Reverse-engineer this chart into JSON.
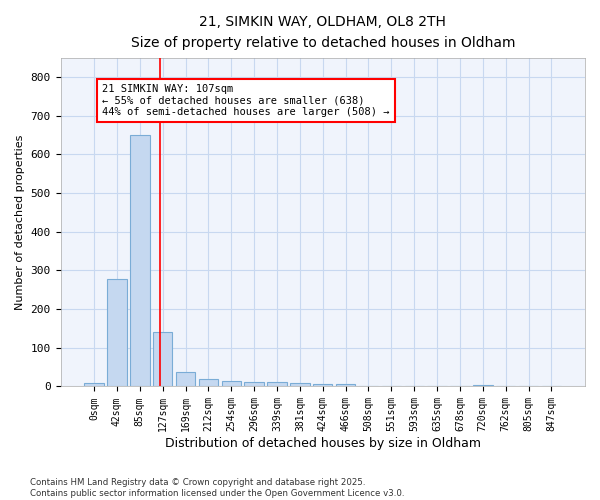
{
  "title1": "21, SIMKIN WAY, OLDHAM, OL8 2TH",
  "title2": "Size of property relative to detached houses in Oldham",
  "xlabel": "Distribution of detached houses by size in Oldham",
  "ylabel": "Number of detached properties",
  "footnote1": "Contains HM Land Registry data © Crown copyright and database right 2025.",
  "footnote2": "Contains public sector information licensed under the Open Government Licence v3.0.",
  "bar_labels": [
    "0sqm",
    "42sqm",
    "85sqm",
    "127sqm",
    "169sqm",
    "212sqm",
    "254sqm",
    "296sqm",
    "339sqm",
    "381sqm",
    "424sqm",
    "466sqm",
    "508sqm",
    "551sqm",
    "593sqm",
    "635sqm",
    "678sqm",
    "720sqm",
    "762sqm",
    "805sqm",
    "847sqm"
  ],
  "bar_values": [
    8,
    278,
    650,
    142,
    38,
    20,
    13,
    11,
    11,
    10,
    7,
    7,
    0,
    0,
    0,
    0,
    0,
    5,
    0,
    0,
    0
  ],
  "bar_color": "#c5d8f0",
  "bar_edge_color": "#7aacd6",
  "grid_color": "#c8d8f0",
  "background_color": "#f0f4fc",
  "plot_bg_color": "#f0f4fc",
  "red_line_x": 2.9,
  "annotation_text": "21 SIMKIN WAY: 107sqm\n← 55% of detached houses are smaller (638)\n44% of semi-detached houses are larger (508) →",
  "annotation_box_color": "white",
  "annotation_box_edge_color": "red",
  "ylim": [
    0,
    850
  ],
  "yticks": [
    0,
    100,
    200,
    300,
    400,
    500,
    600,
    700,
    800
  ]
}
